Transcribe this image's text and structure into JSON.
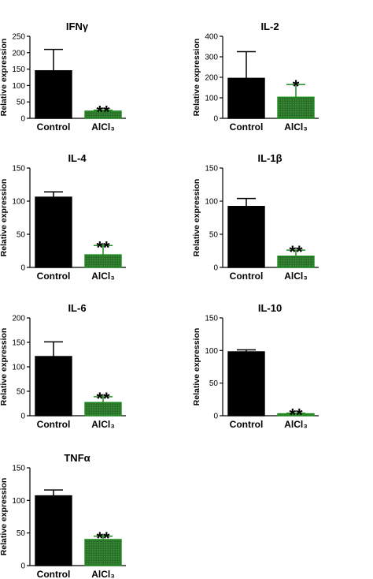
{
  "colors": {
    "control": "#000000",
    "treated": "#1e8c1e",
    "treated_fill": "#2a6e2a",
    "axis": "#000000"
  },
  "chart_data": [
    {
      "type": "bar",
      "title": "IFNγ",
      "ylabel": "Relative expression",
      "ylim": [
        0,
        250
      ],
      "yticks": [
        0,
        50,
        100,
        150,
        200,
        250
      ],
      "categories": [
        "Control",
        "AlCl₃"
      ],
      "values": [
        145,
        22
      ],
      "errors": [
        65,
        3
      ],
      "significance": [
        "",
        "**"
      ]
    },
    {
      "type": "bar",
      "title": "IL-2",
      "ylabel": "Relative expression",
      "ylim": [
        0,
        400
      ],
      "yticks": [
        0,
        100,
        200,
        300,
        400
      ],
      "categories": [
        "Control",
        "AlCl₃"
      ],
      "values": [
        195,
        103
      ],
      "errors": [
        130,
        62
      ],
      "significance": [
        "",
        "*"
      ]
    },
    {
      "type": "bar",
      "title": "IL-4",
      "ylabel": "Relative expression",
      "ylim": [
        0,
        150
      ],
      "yticks": [
        0,
        50,
        100,
        150
      ],
      "categories": [
        "Control",
        "AlCl₃"
      ],
      "values": [
        106,
        19
      ],
      "errors": [
        8,
        14
      ],
      "significance": [
        "",
        "**"
      ]
    },
    {
      "type": "bar",
      "title": "IL-1β",
      "ylabel": "Relative expression",
      "ylim": [
        0,
        150
      ],
      "yticks": [
        0,
        50,
        100,
        150
      ],
      "categories": [
        "Control",
        "AlCl₃"
      ],
      "values": [
        92,
        17
      ],
      "errors": [
        12,
        9
      ],
      "significance": [
        "",
        "**"
      ]
    },
    {
      "type": "bar",
      "title": "IL-6",
      "ylabel": "Relative expression",
      "ylim": [
        0,
        200
      ],
      "yticks": [
        0,
        50,
        100,
        150,
        200
      ],
      "categories": [
        "Control",
        "AlCl₃"
      ],
      "values": [
        121,
        27
      ],
      "errors": [
        30,
        12
      ],
      "significance": [
        "",
        "**"
      ]
    },
    {
      "type": "bar",
      "title": "IL-10",
      "ylabel": "Relative expression",
      "ylim": [
        0,
        150
      ],
      "yticks": [
        0,
        50,
        100,
        150
      ],
      "categories": [
        "Control",
        "AlCl₃"
      ],
      "values": [
        98,
        3
      ],
      "errors": [
        3,
        1
      ],
      "significance": [
        "",
        "**"
      ]
    },
    {
      "type": "bar",
      "title": "TNFα",
      "ylabel": "Relative expression",
      "ylim": [
        0,
        150
      ],
      "yticks": [
        0,
        50,
        100,
        150
      ],
      "categories": [
        "Control",
        "AlCl₃"
      ],
      "values": [
        107,
        40
      ],
      "errors": [
        9,
        5
      ],
      "significance": [
        "",
        "**"
      ]
    }
  ]
}
